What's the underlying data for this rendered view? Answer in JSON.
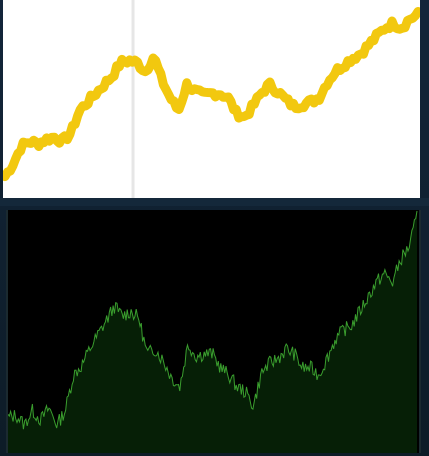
{
  "chart_data": [
    {
      "type": "line",
      "title": "",
      "xlabel": "",
      "ylabel": "",
      "grid": false,
      "series_color": "#f2c80f",
      "background": "#ffffff",
      "cursor_line_color": "#e6e6e6",
      "cursor_x": 0.31,
      "x": [
        0,
        0.02,
        0.04,
        0.06,
        0.08,
        0.1,
        0.12,
        0.14,
        0.16,
        0.18,
        0.2,
        0.22,
        0.24,
        0.26,
        0.28,
        0.3,
        0.32,
        0.34,
        0.36,
        0.38,
        0.4,
        0.42,
        0.44,
        0.46,
        0.48,
        0.5,
        0.52,
        0.54,
        0.56,
        0.58,
        0.6,
        0.62,
        0.64,
        0.66,
        0.68,
        0.7,
        0.72,
        0.74,
        0.76,
        0.78,
        0.8,
        0.82,
        0.84,
        0.86,
        0.88,
        0.9,
        0.92,
        0.94,
        0.96,
        0.98,
        1.0
      ],
      "y": [
        0.28,
        0.34,
        0.42,
        0.44,
        0.43,
        0.45,
        0.46,
        0.44,
        0.48,
        0.58,
        0.62,
        0.66,
        0.7,
        0.74,
        0.8,
        0.81,
        0.8,
        0.76,
        0.83,
        0.72,
        0.64,
        0.58,
        0.7,
        0.67,
        0.65,
        0.66,
        0.66,
        0.64,
        0.57,
        0.55,
        0.6,
        0.66,
        0.7,
        0.67,
        0.63,
        0.6,
        0.61,
        0.62,
        0.64,
        0.71,
        0.76,
        0.79,
        0.82,
        0.84,
        0.88,
        0.92,
        0.96,
        0.98,
        0.96,
        1.0,
        1.02
      ],
      "ylim": [
        0.2,
        1.05
      ]
    },
    {
      "type": "area",
      "title": "",
      "xlabel": "",
      "ylabel": "",
      "grid": false,
      "line_color": "#3a9e2e",
      "fill_color": "#061f06",
      "background": "#000000",
      "x": [
        0,
        0.02,
        0.04,
        0.06,
        0.08,
        0.1,
        0.12,
        0.14,
        0.16,
        0.18,
        0.2,
        0.22,
        0.24,
        0.26,
        0.28,
        0.3,
        0.32,
        0.34,
        0.36,
        0.38,
        0.4,
        0.42,
        0.44,
        0.46,
        0.48,
        0.5,
        0.52,
        0.54,
        0.56,
        0.58,
        0.6,
        0.62,
        0.64,
        0.66,
        0.68,
        0.7,
        0.72,
        0.74,
        0.76,
        0.78,
        0.8,
        0.82,
        0.84,
        0.86,
        0.88,
        0.9,
        0.92,
        0.94,
        0.96,
        0.98,
        1.0
      ],
      "y": [
        0.15,
        0.16,
        0.12,
        0.18,
        0.14,
        0.19,
        0.12,
        0.18,
        0.33,
        0.37,
        0.44,
        0.5,
        0.56,
        0.62,
        0.58,
        0.6,
        0.57,
        0.42,
        0.44,
        0.39,
        0.32,
        0.28,
        0.46,
        0.41,
        0.42,
        0.42,
        0.36,
        0.33,
        0.28,
        0.26,
        0.2,
        0.34,
        0.38,
        0.4,
        0.44,
        0.42,
        0.36,
        0.36,
        0.33,
        0.4,
        0.48,
        0.52,
        0.54,
        0.6,
        0.66,
        0.72,
        0.76,
        0.72,
        0.82,
        0.87,
        1.0
      ],
      "ylim": [
        0,
        1.02
      ]
    }
  ]
}
